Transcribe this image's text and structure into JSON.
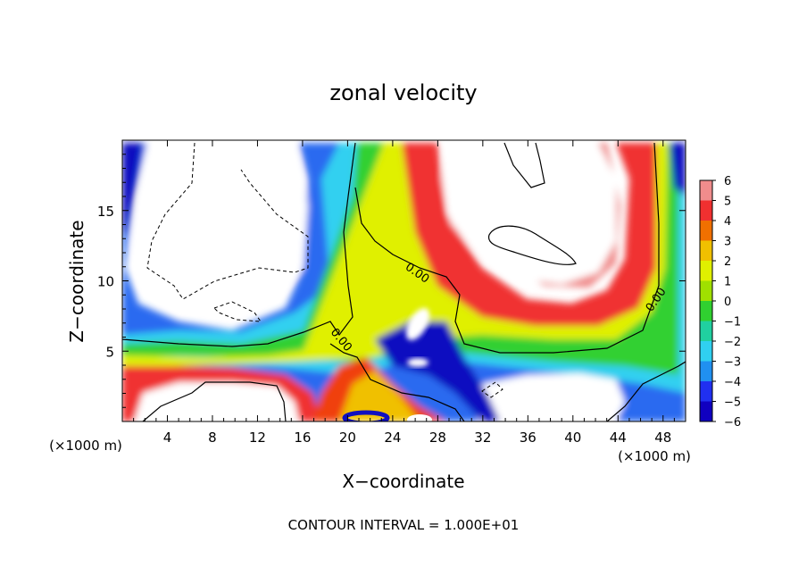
{
  "chart_data": {
    "type": "heatmap",
    "title": "zonal velocity",
    "xlabel": "X−coordinate",
    "ylabel": "Z−coordinate",
    "x_unit_left": "(×1000 m)",
    "x_unit_right": "(×1000 m)",
    "footer": "CONTOUR INTERVAL = 1.000E+01",
    "xlim": [
      0,
      50
    ],
    "ylim": [
      0,
      20
    ],
    "x_ticks": [
      4,
      8,
      12,
      16,
      20,
      24,
      28,
      32,
      36,
      40,
      44,
      48
    ],
    "y_ticks": [
      5,
      10,
      15
    ],
    "colorbar": {
      "levels": [
        6,
        5,
        4,
        3,
        2,
        1,
        0,
        -1,
        -2,
        -3,
        -4,
        -5,
        -6
      ],
      "range": [
        -6,
        6
      ],
      "colors": [
        "#f08c8c",
        "#f03030",
        "#f07000",
        "#f0c000",
        "#e0f000",
        "#a0e000",
        "#30d030",
        "#20d0a0",
        "#30d0f0",
        "#2090f0",
        "#2030f0",
        "#1000c0",
        "#7000a0"
      ]
    },
    "contour_labels": [
      {
        "text": "0.00",
        "x": 26.3,
        "z": 10.6
      },
      {
        "text": "0.00",
        "x": 19.2,
        "z": 5.8
      },
      {
        "text": "0.00",
        "x": 46.2,
        "z": 8.2
      }
    ],
    "contour_interval": 10.0
  }
}
